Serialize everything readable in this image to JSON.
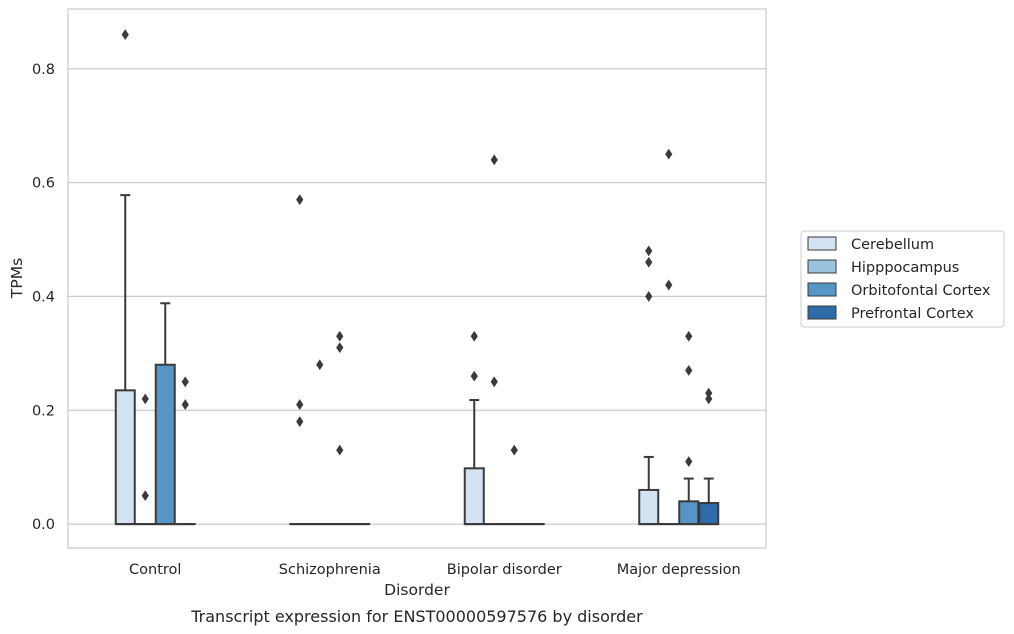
{
  "chart_data": {
    "type": "box",
    "caption": "Transcript expression for ENST00000597576 by disorder",
    "xlabel": "Disorder",
    "ylabel": "TPMs",
    "ylim": [
      -0.042,
      0.905
    ],
    "yticks": [
      {
        "value": 0.0,
        "label": "0.0"
      },
      {
        "value": 0.2,
        "label": "0.2"
      },
      {
        "value": 0.4,
        "label": "0.4"
      },
      {
        "value": 0.6,
        "label": "0.6"
      },
      {
        "value": 0.8,
        "label": "0.8"
      }
    ],
    "grid": "horizontal",
    "legend_position": "right",
    "categories": [
      "Control",
      "Schizophrenia",
      "Bipolar disorder",
      "Major depression"
    ],
    "series": [
      {
        "name": "Cerebellum",
        "color": "#d3e3f2",
        "boxes": [
          {
            "q1": 0,
            "median": 0,
            "q3": 0.235,
            "whisker_low": 0,
            "whisker_high": 0.578,
            "outliers": [
              0.86
            ]
          },
          {
            "q1": 0,
            "median": 0,
            "q3": 0,
            "whisker_low": 0,
            "whisker_high": 0,
            "outliers": [
              0.57,
              0.21,
              0.18
            ]
          },
          {
            "q1": 0,
            "median": 0,
            "q3": 0.098,
            "whisker_low": 0,
            "whisker_high": 0.218,
            "outliers": [
              0.33,
              0.26
            ]
          },
          {
            "q1": 0,
            "median": 0,
            "q3": 0.06,
            "whisker_low": 0,
            "whisker_high": 0.118,
            "outliers": [
              0.48,
              0.46,
              0.4
            ]
          }
        ]
      },
      {
        "name": "Hipppocampus",
        "color": "#9cc3dd",
        "boxes": [
          {
            "q1": 0,
            "median": 0,
            "q3": 0,
            "whisker_low": 0,
            "whisker_high": 0,
            "outliers": [
              0.22,
              0.05
            ]
          },
          {
            "q1": 0,
            "median": 0,
            "q3": 0,
            "whisker_low": 0,
            "whisker_high": 0,
            "outliers": [
              0.28
            ]
          },
          {
            "q1": 0,
            "median": 0,
            "q3": 0,
            "whisker_low": 0,
            "whisker_high": 0,
            "outliers": [
              0.64,
              0.25
            ]
          },
          {
            "q1": 0,
            "median": 0,
            "q3": 0,
            "whisker_low": 0,
            "whisker_high": 0,
            "outliers": [
              0.65,
              0.42
            ]
          }
        ]
      },
      {
        "name": "Orbitofontal Cortex",
        "color": "#5696c6",
        "boxes": [
          {
            "q1": 0,
            "median": 0,
            "q3": 0.28,
            "whisker_low": 0,
            "whisker_high": 0.388,
            "outliers": []
          },
          {
            "q1": 0,
            "median": 0,
            "q3": 0,
            "whisker_low": 0,
            "whisker_high": 0,
            "outliers": [
              0.33,
              0.31,
              0.13
            ]
          },
          {
            "q1": 0,
            "median": 0,
            "q3": 0,
            "whisker_low": 0,
            "whisker_high": 0,
            "outliers": [
              0.13
            ]
          },
          {
            "q1": 0,
            "median": 0,
            "q3": 0.04,
            "whisker_low": 0,
            "whisker_high": 0.08,
            "outliers": [
              0.33,
              0.27,
              0.11
            ]
          }
        ]
      },
      {
        "name": "Prefrontal Cortex",
        "color": "#2f6ba8",
        "boxes": [
          {
            "q1": 0,
            "median": 0,
            "q3": 0,
            "whisker_low": 0,
            "whisker_high": 0,
            "outliers": [
              0.25,
              0.21
            ]
          },
          {
            "q1": 0,
            "median": 0,
            "q3": 0,
            "whisker_low": 0,
            "whisker_high": 0,
            "outliers": []
          },
          {
            "q1": 0,
            "median": 0,
            "q3": 0,
            "whisker_low": 0,
            "whisker_high": 0,
            "outliers": []
          },
          {
            "q1": 0,
            "median": 0,
            "q3": 0.037,
            "whisker_low": 0,
            "whisker_high": 0.08,
            "outliers": [
              0.23,
              0.22
            ]
          }
        ]
      }
    ]
  }
}
